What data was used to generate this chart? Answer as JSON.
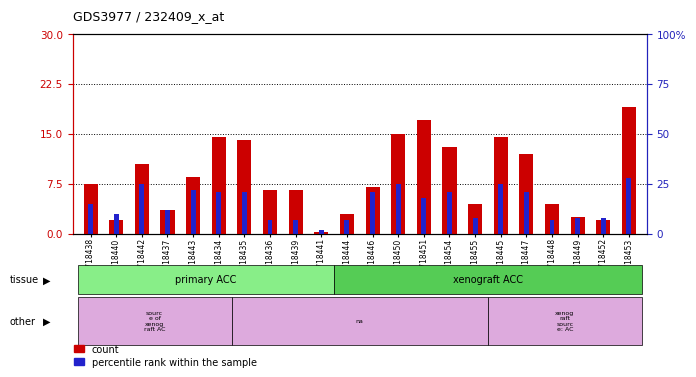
{
  "title": "GDS3977 / 232409_x_at",
  "samples": [
    "GSM718438",
    "GSM718440",
    "GSM718442",
    "GSM718437",
    "GSM718443",
    "GSM718434",
    "GSM718435",
    "GSM718436",
    "GSM718439",
    "GSM718441",
    "GSM718444",
    "GSM718446",
    "GSM718450",
    "GSM718451",
    "GSM718454",
    "GSM718455",
    "GSM718445",
    "GSM718447",
    "GSM718448",
    "GSM718449",
    "GSM718452",
    "GSM718453"
  ],
  "counts": [
    7.5,
    2.0,
    10.5,
    3.5,
    8.5,
    14.5,
    14.0,
    6.5,
    6.5,
    0.3,
    3.0,
    7.0,
    15.0,
    17.0,
    13.0,
    4.5,
    14.5,
    12.0,
    4.5,
    2.5,
    2.0,
    19.0
  ],
  "percentiles_pct": [
    15,
    10,
    25,
    12,
    22,
    21,
    21,
    7,
    7,
    2,
    7,
    21,
    25,
    18,
    21,
    8,
    25,
    21,
    7,
    8,
    8,
    28
  ],
  "ylim_left": [
    0,
    30
  ],
  "ylim_right": [
    0,
    100
  ],
  "yticks_left": [
    0,
    7.5,
    15,
    22.5,
    30
  ],
  "yticks_right": [
    0,
    25,
    50,
    75,
    100
  ],
  "bar_color_red": "#cc0000",
  "bar_color_blue": "#2222cc",
  "bg_color": "#ffffff",
  "title_color": "#000000",
  "left_axis_color": "#cc0000",
  "right_axis_color": "#2222bb",
  "tissue_primary_color": "#88ee88",
  "tissue_xenograft_color": "#55cc55",
  "other_color": "#ddaadd",
  "tissue_groups": [
    {
      "label": "primary ACC",
      "start": 0,
      "end": 10
    },
    {
      "label": "xenograft ACC",
      "start": 10,
      "end": 22
    }
  ],
  "other_groups": [
    {
      "label": "sourc\ne of\nxenog\nraft AC",
      "start": 0,
      "end": 6
    },
    {
      "label": "na",
      "start": 6,
      "end": 16
    },
    {
      "label": "xenog\nraft\nsourc\ne: AC",
      "start": 16,
      "end": 22
    }
  ]
}
